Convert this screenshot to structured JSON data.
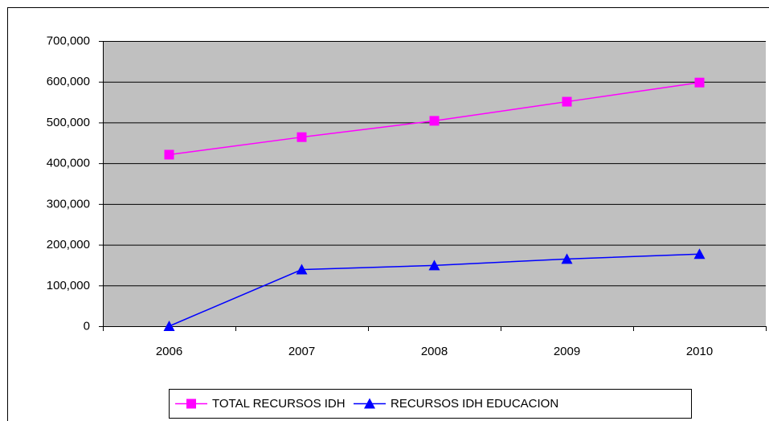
{
  "chart_data": {
    "type": "line",
    "categories": [
      "2006",
      "2007",
      "2008",
      "2009",
      "2010"
    ],
    "series": [
      {
        "name": "TOTAL RECURSOS IDH",
        "color": "#ff00ff",
        "marker": "square",
        "values": [
          421000,
          464000,
          504000,
          551000,
          598000
        ]
      },
      {
        "name": "RECURSOS IDH EDUCACION",
        "color": "#0000ff",
        "marker": "triangle",
        "values": [
          0,
          139000,
          149000,
          165000,
          177000
        ]
      }
    ],
    "ylim": [
      0,
      700000
    ],
    "yticks": [
      0,
      {
        "value": 100000,
        "label": "100,000"
      },
      {
        "value": 200000,
        "label": "200,000"
      },
      {
        "value": 300000,
        "label": "300,000"
      },
      {
        "value": 400000,
        "label": "400,000"
      },
      {
        "value": 500000,
        "label": "500,000"
      },
      {
        "value": 600000,
        "label": "600,000"
      },
      {
        "value": 700000,
        "label": "700,000"
      }
    ],
    "grid": true,
    "legend": "bottom",
    "plot_background": "#c0c0c0"
  }
}
